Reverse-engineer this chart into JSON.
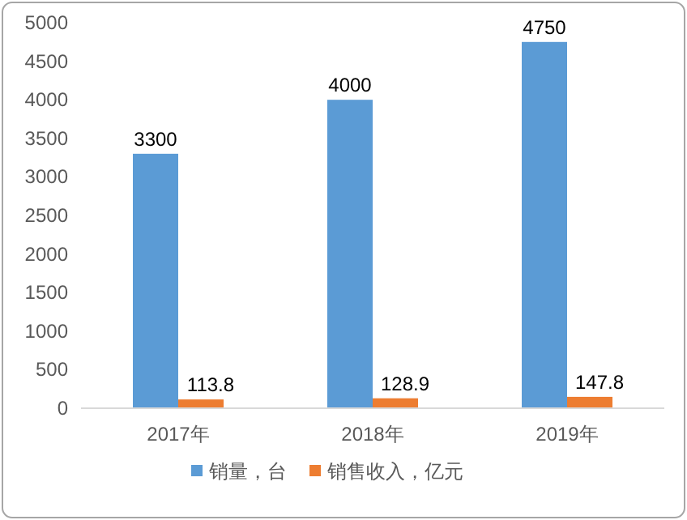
{
  "chart_data": {
    "type": "bar",
    "categories": [
      "2017年",
      "2018年",
      "2019年"
    ],
    "series": [
      {
        "name": "销量，台",
        "color": "#5b9bd5",
        "values": [
          3300,
          4000,
          4750
        ]
      },
      {
        "name": "销售收入，亿元",
        "color": "#ed7d31",
        "values": [
          113.8,
          128.9,
          147.8
        ]
      }
    ],
    "ylim": [
      0,
      5000
    ],
    "yticks": [
      0,
      500,
      1000,
      1500,
      2000,
      2500,
      3000,
      3500,
      4000,
      4500,
      5000
    ],
    "data_labels": true,
    "legend": "bottom"
  }
}
